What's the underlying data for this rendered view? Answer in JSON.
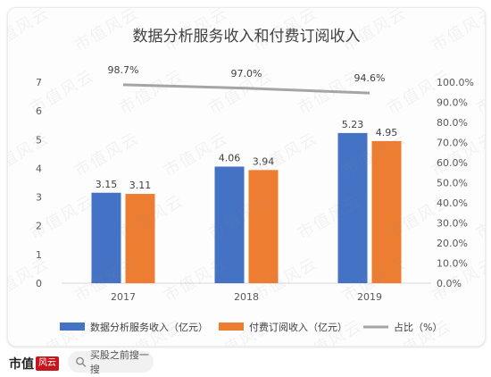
{
  "chart_data": {
    "type": "bar",
    "title": "数据分析服务收入和付费订阅收入",
    "categories": [
      "2017",
      "2018",
      "2019"
    ],
    "series": [
      {
        "name": "数据分析服务收入（亿元）",
        "type": "bar",
        "axis": "left",
        "color": "#4472c4",
        "values": [
          3.15,
          4.06,
          5.23
        ]
      },
      {
        "name": "付费订阅收入（亿元）",
        "type": "bar",
        "axis": "left",
        "color": "#ed7d31",
        "values": [
          3.11,
          3.94,
          4.95
        ]
      },
      {
        "name": "占比（%）",
        "type": "line",
        "axis": "right",
        "color": "#a5a5a5",
        "values": [
          98.7,
          97.0,
          94.6
        ]
      }
    ],
    "data_labels": {
      "series_0": [
        "3.15",
        "4.06",
        "5.23"
      ],
      "series_1": [
        "3.11",
        "3.94",
        "4.95"
      ],
      "series_2": [
        "98.7%",
        "97.0%",
        "94.6%"
      ]
    },
    "ylim": [
      0,
      7
    ],
    "yticks": [
      "0",
      "1",
      "2",
      "3",
      "4",
      "5",
      "6",
      "7"
    ],
    "y2lim": [
      0,
      100
    ],
    "y2ticks": [
      "0.0%",
      "10.0%",
      "20.0%",
      "30.0%",
      "40.0%",
      "50.0%",
      "60.0%",
      "70.0%",
      "80.0%",
      "90.0%",
      "100.0%"
    ],
    "grid": false,
    "legend_position": "bottom"
  },
  "watermark": {
    "text": "市值风云"
  },
  "footer": {
    "brand": "市值",
    "brand_seal": "风云",
    "search_text": "买股之前搜一搜"
  }
}
